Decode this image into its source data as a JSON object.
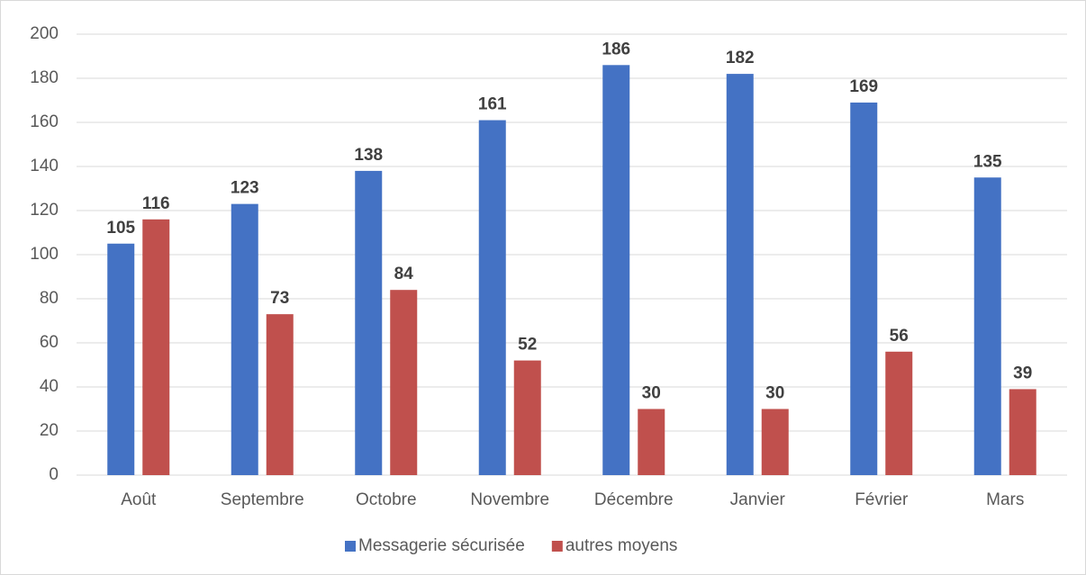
{
  "chart_data": {
    "type": "bar",
    "categories": [
      "Août",
      "Septembre",
      "Octobre",
      "Novembre",
      "Décembre",
      "Janvier",
      "Février",
      "Mars"
    ],
    "series": [
      {
        "name": "Messagerie sécurisée",
        "color": "#4472c4",
        "values": [
          105,
          123,
          138,
          161,
          186,
          182,
          169,
          135
        ]
      },
      {
        "name": "autres moyens",
        "color": "#c0504d",
        "values": [
          116,
          73,
          84,
          52,
          30,
          30,
          56,
          39
        ]
      }
    ],
    "ylim": [
      0,
      200
    ],
    "yticks": [
      0,
      20,
      40,
      60,
      80,
      100,
      120,
      140,
      160,
      180,
      200
    ],
    "grid": true,
    "legend": "bottom"
  }
}
